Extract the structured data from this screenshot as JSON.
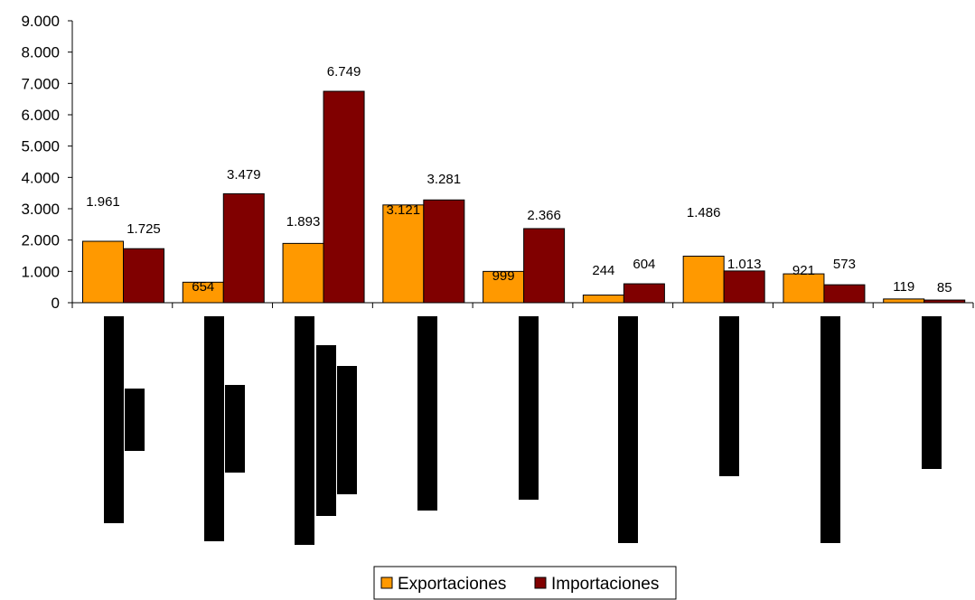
{
  "chart_data": {
    "type": "bar",
    "title": "",
    "xlabel": "",
    "ylabel": "",
    "ylim": [
      0,
      9000
    ],
    "y_ticks": [
      "0",
      "1.000",
      "2.000",
      "3.000",
      "4.000",
      "5.000",
      "6.000",
      "7.000",
      "8.000",
      "9.000"
    ],
    "grid": false,
    "legend_position": "bottom",
    "categories": [
      "",
      "",
      "",
      "",
      "",
      "",
      "",
      "",
      ""
    ],
    "category_note": "category labels are rendered as redacted black bars",
    "series": [
      {
        "name": "Exportaciones",
        "color": "#FF9900",
        "values": [
          1961,
          654,
          1893,
          3121,
          999,
          244,
          1486,
          921,
          119
        ],
        "labels": [
          "1.961",
          "654",
          "1.893",
          "3.121",
          "999",
          "244",
          "1.486",
          "921",
          "119"
        ]
      },
      {
        "name": "Importaciones",
        "color": "#800000",
        "values": [
          1725,
          3479,
          6749,
          3281,
          2366,
          604,
          1013,
          573,
          85
        ],
        "labels": [
          "1.725",
          "3.479",
          "6.749",
          "3.281",
          "2.366",
          "604",
          "1.013",
          "573",
          "85"
        ]
      }
    ]
  }
}
